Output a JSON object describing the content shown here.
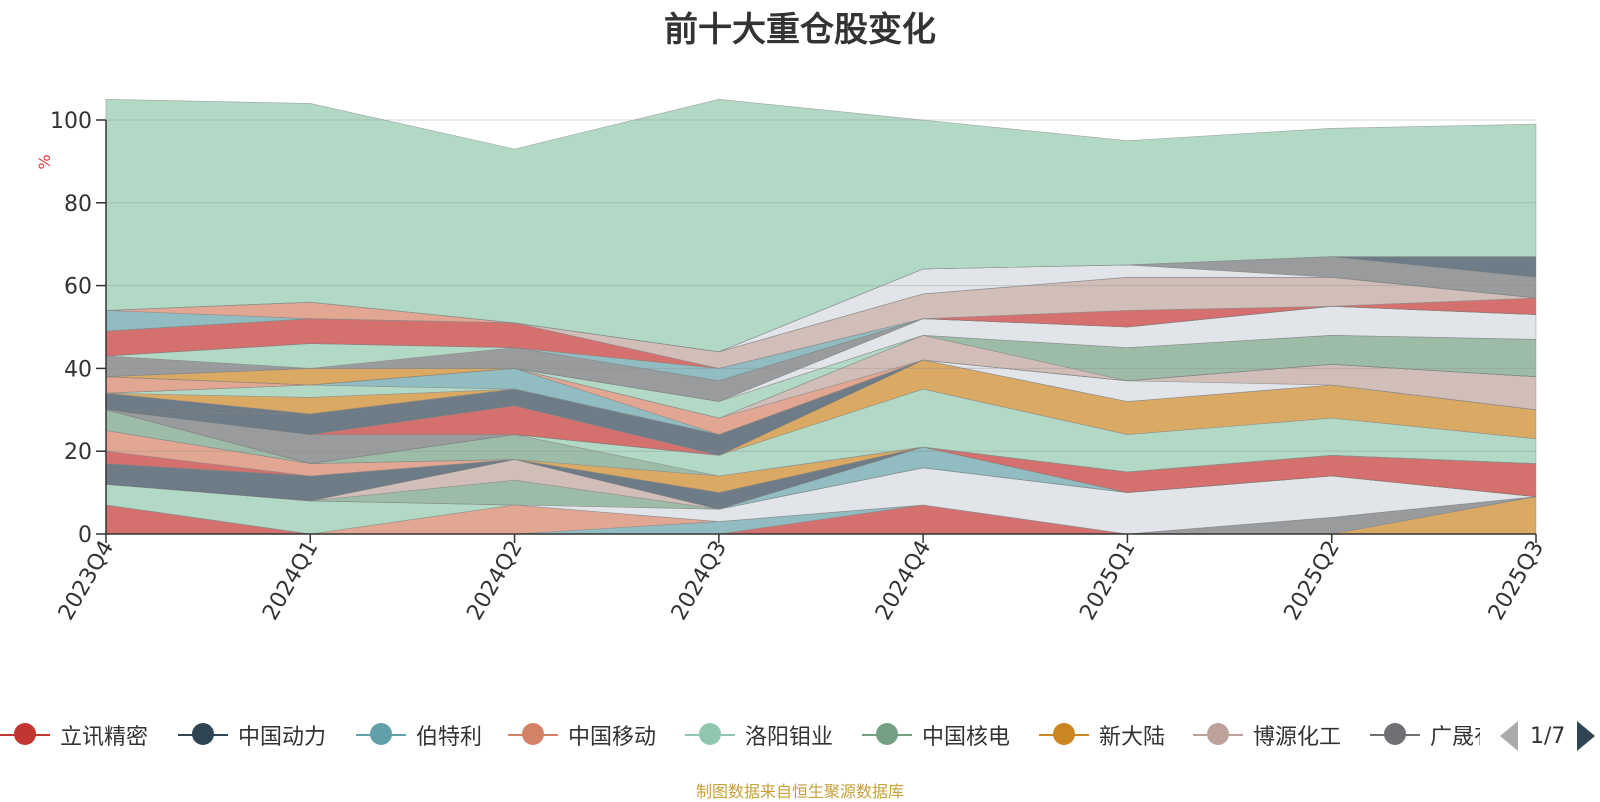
{
  "title": "前十大重仓股变化",
  "source": "制图数据来自恒生聚源数据库",
  "pager": {
    "text": "1/7"
  },
  "legend": [
    {
      "name": "立讯精密",
      "color": "#c23531"
    },
    {
      "name": "中国动力",
      "color": "#2f4554"
    },
    {
      "name": "伯特利",
      "color": "#61a0a8"
    },
    {
      "name": "中国移动",
      "color": "#d48265"
    },
    {
      "name": "洛阳钼业",
      "color": "#91c7ae"
    },
    {
      "name": "中国核电",
      "color": "#749f83"
    },
    {
      "name": "新大陆",
      "color": "#ca8622"
    },
    {
      "name": "博源化工",
      "color": "#bda29a"
    },
    {
      "name": "广晟有色",
      "color": "#6e7074"
    }
  ],
  "chart_data": {
    "type": "area",
    "stacked": true,
    "title": "前十大重仓股变化",
    "ylabel": "%",
    "ylim": [
      0,
      100
    ],
    "yticks": [
      0,
      20,
      40,
      60,
      80,
      100
    ],
    "categories": [
      "2023Q4",
      "2024Q1",
      "2024Q2",
      "2024Q3",
      "2024Q4",
      "2025Q1",
      "2025Q2",
      "2025Q3"
    ],
    "series": [
      {
        "name": "",
        "color": "#ca8622",
        "values": [
          0,
          0,
          0,
          0,
          0,
          0,
          0,
          9
        ]
      },
      {
        "name": "",
        "color": "#6e7074",
        "values": [
          0,
          0,
          0,
          0,
          0,
          0,
          4,
          0
        ]
      },
      {
        "name": "",
        "color": "#c23531",
        "values": [
          7,
          0,
          0,
          0,
          7,
          0,
          0,
          0
        ]
      },
      {
        "name": "",
        "color": "#61a0a8",
        "values": [
          0,
          0,
          0,
          3,
          0,
          0,
          0,
          0
        ]
      },
      {
        "name": "",
        "color": "#d48265",
        "values": [
          0,
          0,
          7,
          0,
          0,
          0,
          0,
          0
        ]
      },
      {
        "name": "",
        "color": "#91c7ae",
        "values": [
          5,
          8,
          0,
          0,
          0,
          0,
          0,
          0
        ]
      },
      {
        "name": "",
        "color": "#d4d8e0",
        "values": [
          0,
          0,
          0,
          3,
          9,
          10,
          10,
          0
        ]
      },
      {
        "name": "",
        "color": "#749f83",
        "values": [
          0,
          0,
          6,
          0,
          0,
          0,
          0,
          0
        ]
      },
      {
        "name": "",
        "color": "#bda29a",
        "values": [
          0,
          0,
          5,
          0,
          0,
          0,
          0,
          0
        ]
      },
      {
        "name": "",
        "color": "#61a0a8",
        "values": [
          0,
          0,
          0,
          0,
          5,
          0,
          0,
          0
        ]
      },
      {
        "name": "",
        "color": "#2f4554",
        "values": [
          5,
          6,
          0,
          4,
          0,
          0,
          0,
          0
        ]
      },
      {
        "name": "",
        "color": "#c23531",
        "values": [
          3,
          0,
          0,
          0,
          0,
          5,
          5,
          8
        ]
      },
      {
        "name": "",
        "color": "#d48265",
        "values": [
          5,
          3,
          0,
          0,
          0,
          0,
          0,
          0
        ]
      },
      {
        "name": "",
        "color": "#ca8622",
        "values": [
          0,
          0,
          0,
          4,
          0,
          0,
          0,
          0
        ]
      },
      {
        "name": "",
        "color": "#749f83",
        "values": [
          5,
          0,
          6,
          0,
          0,
          0,
          0,
          0
        ]
      },
      {
        "name": "",
        "color": "#91c7ae",
        "values": [
          0,
          0,
          0,
          5,
          14,
          9,
          9,
          6
        ]
      },
      {
        "name": "",
        "color": "#ca8622",
        "values": [
          0,
          0,
          0,
          0,
          7,
          8,
          8,
          7
        ]
      },
      {
        "name": "",
        "color": "#6e7074",
        "values": [
          0,
          7,
          0,
          0,
          0,
          0,
          0,
          0
        ]
      },
      {
        "name": "",
        "color": "#c23531",
        "values": [
          0,
          0,
          7,
          0,
          0,
          0,
          0,
          0
        ]
      },
      {
        "name": "",
        "color": "#2f4554",
        "values": [
          0,
          5,
          4,
          5,
          0,
          0,
          0,
          0
        ]
      },
      {
        "name": "",
        "color": "#d4d8e0",
        "values": [
          0,
          0,
          0,
          0,
          0,
          5,
          0,
          0
        ]
      },
      {
        "name": "",
        "color": "#bda29a",
        "values": [
          0,
          0,
          0,
          0,
          0,
          0,
          5,
          8
        ]
      },
      {
        "name": "",
        "color": "#2f4554",
        "values": [
          4,
          0,
          0,
          0,
          0,
          0,
          0,
          0
        ]
      },
      {
        "name": "",
        "color": "#ca8622",
        "values": [
          0,
          4,
          0,
          0,
          0,
          0,
          0,
          0
        ]
      },
      {
        "name": "",
        "color": "#91c7ae",
        "values": [
          0,
          3,
          0,
          0,
          0,
          0,
          0,
          0
        ]
      },
      {
        "name": "",
        "color": "#61a0a8",
        "values": [
          0,
          0,
          5,
          0,
          0,
          0,
          0,
          0
        ]
      },
      {
        "name": "",
        "color": "#d48265",
        "values": [
          4,
          0,
          0,
          4,
          0,
          0,
          0,
          0
        ]
      },
      {
        "name": "",
        "color": "#bda29a",
        "values": [
          0,
          0,
          0,
          0,
          6,
          0,
          0,
          0
        ]
      },
      {
        "name": "",
        "color": "#749f83",
        "values": [
          0,
          0,
          0,
          0,
          0,
          8,
          7,
          9
        ]
      },
      {
        "name": "",
        "color": "#91c7ae",
        "values": [
          0,
          0,
          0,
          4,
          0,
          0,
          0,
          0
        ]
      },
      {
        "name": "",
        "color": "#ca8622",
        "values": [
          0,
          4,
          0,
          0,
          0,
          0,
          0,
          0
        ]
      },
      {
        "name": "",
        "color": "#d4d8e0",
        "values": [
          0,
          0,
          0,
          0,
          4,
          5,
          7,
          6
        ]
      },
      {
        "name": "",
        "color": "#6e7074",
        "values": [
          5,
          0,
          5,
          5,
          0,
          0,
          0,
          0
        ]
      },
      {
        "name": "",
        "color": "#91c7ae",
        "values": [
          0,
          6,
          0,
          0,
          0,
          0,
          0,
          0
        ]
      },
      {
        "name": "",
        "color": "#61a0a8",
        "values": [
          0,
          0,
          0,
          3,
          0,
          0,
          0,
          0
        ]
      },
      {
        "name": "",
        "color": "#c23531",
        "values": [
          6,
          6,
          6,
          0,
          0,
          4,
          0,
          4
        ]
      },
      {
        "name": "",
        "color": "#bda29a",
        "values": [
          0,
          0,
          0,
          4,
          6,
          8,
          7,
          0
        ]
      },
      {
        "name": "",
        "color": "#61a0a8",
        "values": [
          5,
          0,
          0,
          0,
          0,
          0,
          0,
          0
        ]
      },
      {
        "name": "",
        "color": "#d48265",
        "values": [
          0,
          4,
          0,
          0,
          0,
          0,
          0,
          0
        ]
      },
      {
        "name": "",
        "color": "#d4d8e0",
        "values": [
          0,
          0,
          0,
          0,
          6,
          3,
          0,
          0
        ]
      },
      {
        "name": "",
        "color": "#6e7074",
        "values": [
          0,
          0,
          0,
          0,
          0,
          0,
          5,
          5
        ]
      },
      {
        "name": "",
        "color": "#2f4554",
        "values": [
          0,
          0,
          0,
          0,
          0,
          0,
          0,
          5
        ]
      },
      {
        "name": "",
        "color": "#91c7ae",
        "values": [
          51,
          48,
          42,
          61,
          36,
          30,
          31,
          32
        ]
      }
    ]
  }
}
